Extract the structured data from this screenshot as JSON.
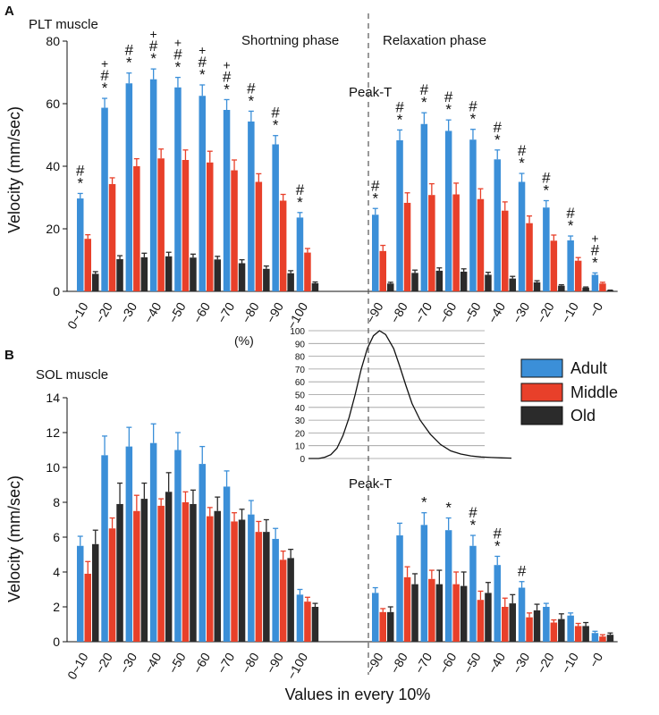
{
  "figure": {
    "xlabel": "Values in every 10%",
    "legend": [
      {
        "name": "Adult",
        "color": "#3b8fd8"
      },
      {
        "name": "Middle",
        "color": "#e8402a"
      },
      {
        "name": "Old",
        "color": "#2b2b2b"
      }
    ]
  },
  "chart_data": [
    {
      "type": "bar",
      "panel": "A",
      "title": "PLT muscle",
      "ylabel": "Velocity (mm/sec)",
      "ylim": [
        0,
        80
      ],
      "yticks": [
        0,
        20,
        40,
        60,
        80
      ],
      "phase_labels": {
        "shortening": "Shortning phase",
        "relaxation": "Relaxation phase",
        "peak": "Peak-T"
      },
      "categories": [
        "0~10",
        "−20",
        "−30",
        "−40",
        "−50",
        "−60",
        "−70",
        "−80",
        "−90",
        "−100",
        "−90",
        "−80",
        "−70",
        "−60",
        "−50",
        "−40",
        "−30",
        "−20",
        "−10",
        "−0"
      ],
      "series": [
        {
          "name": "Adult",
          "color": "#3b8fd8",
          "values": [
            29.7,
            58.7,
            66.5,
            67.8,
            65.2,
            62.5,
            58.0,
            54.3,
            47.0,
            23.6,
            24.5,
            48.3,
            53.5,
            51.3,
            48.5,
            42.2,
            35.0,
            26.8,
            16.3,
            5.3
          ],
          "errors": [
            1.6,
            3.0,
            3.3,
            3.3,
            3.2,
            3.5,
            3.3,
            3.3,
            2.8,
            1.6,
            2.0,
            3.3,
            3.6,
            3.5,
            3.3,
            3.0,
            2.7,
            2.2,
            1.4,
            0.6
          ]
        },
        {
          "name": "Middle",
          "color": "#e8402a",
          "values": [
            16.8,
            34.3,
            40.0,
            42.5,
            42.0,
            41.2,
            38.7,
            35.0,
            29.0,
            12.4,
            12.9,
            28.3,
            30.8,
            31.0,
            29.5,
            25.8,
            21.8,
            16.2,
            9.8,
            2.5
          ],
          "errors": [
            1.3,
            2.0,
            2.4,
            3.0,
            3.2,
            3.6,
            3.3,
            2.6,
            2.0,
            1.3,
            1.8,
            3.2,
            3.6,
            3.6,
            3.3,
            2.8,
            2.3,
            1.8,
            1.0,
            0.4
          ]
        },
        {
          "name": "Old",
          "color": "#2b2b2b",
          "values": [
            5.6,
            10.3,
            10.9,
            11.2,
            10.8,
            10.2,
            9.0,
            7.2,
            5.8,
            2.6,
            2.5,
            5.9,
            6.6,
            6.3,
            5.3,
            4.1,
            2.9,
            1.8,
            1.2,
            0.3
          ],
          "errors": [
            0.7,
            1.1,
            1.3,
            1.3,
            1.1,
            1.0,
            1.1,
            0.9,
            0.8,
            0.4,
            0.4,
            0.9,
            0.9,
            0.9,
            0.8,
            0.7,
            0.5,
            0.3,
            0.2,
            0.1
          ]
        }
      ],
      "annotations": [
        {
          "category_index": 0,
          "marks": [
            "#",
            "*"
          ]
        },
        {
          "category_index": 1,
          "marks": [
            "+",
            "#",
            "*"
          ]
        },
        {
          "category_index": 2,
          "marks": [
            "#",
            "*"
          ]
        },
        {
          "category_index": 3,
          "marks": [
            "+",
            "#",
            "*"
          ]
        },
        {
          "category_index": 4,
          "marks": [
            "+",
            "#",
            "*"
          ]
        },
        {
          "category_index": 5,
          "marks": [
            "+",
            "#",
            "*"
          ]
        },
        {
          "category_index": 6,
          "marks": [
            "+",
            "#",
            "*"
          ]
        },
        {
          "category_index": 7,
          "marks": [
            "#",
            "*"
          ]
        },
        {
          "category_index": 8,
          "marks": [
            "#",
            "*"
          ]
        },
        {
          "category_index": 9,
          "marks": [
            "#",
            "*"
          ]
        },
        {
          "category_index": 10,
          "marks": [
            "#",
            "*"
          ]
        },
        {
          "category_index": 11,
          "marks": [
            "#",
            "*"
          ]
        },
        {
          "category_index": 12,
          "marks": [
            "#",
            "*"
          ]
        },
        {
          "category_index": 13,
          "marks": [
            "#",
            "*"
          ]
        },
        {
          "category_index": 14,
          "marks": [
            "#",
            "*"
          ]
        },
        {
          "category_index": 15,
          "marks": [
            "#",
            "*"
          ]
        },
        {
          "category_index": 16,
          "marks": [
            "#",
            "*"
          ]
        },
        {
          "category_index": 17,
          "marks": [
            "#",
            "*"
          ]
        },
        {
          "category_index": 18,
          "marks": [
            "#",
            "*"
          ]
        },
        {
          "category_index": 19,
          "marks": [
            "+",
            "#",
            "*"
          ]
        }
      ]
    },
    {
      "type": "bar",
      "panel": "B",
      "title": "SOL muscle",
      "ylabel": "Velocity (mm/sec)",
      "ylim": [
        0,
        14
      ],
      "yticks": [
        0,
        2,
        4,
        6,
        8,
        10,
        12,
        14
      ],
      "phase_labels": {
        "peak": "Peak-T"
      },
      "categories": [
        "0~10",
        "−20",
        "−30",
        "−40",
        "−50",
        "−60",
        "−70",
        "−80",
        "−90",
        "−100",
        "−90",
        "−80",
        "−70",
        "−60",
        "−50",
        "−40",
        "−30",
        "−20",
        "−10",
        "−0"
      ],
      "series": [
        {
          "name": "Adult",
          "color": "#3b8fd8",
          "values": [
            5.5,
            10.7,
            11.2,
            11.4,
            11.0,
            10.2,
            8.9,
            7.3,
            5.9,
            2.7,
            2.8,
            6.1,
            6.7,
            6.4,
            5.5,
            4.4,
            3.1,
            2.0,
            1.5,
            0.5
          ],
          "errors": [
            0.55,
            1.1,
            1.1,
            1.1,
            1.0,
            1.0,
            0.9,
            0.8,
            0.6,
            0.3,
            0.3,
            0.7,
            0.7,
            0.7,
            0.6,
            0.5,
            0.35,
            0.2,
            0.15,
            0.1
          ]
        },
        {
          "name": "Middle",
          "color": "#e8402a",
          "values": [
            3.9,
            6.5,
            7.5,
            7.8,
            8.0,
            7.2,
            6.9,
            6.3,
            4.7,
            2.3,
            1.7,
            3.7,
            3.6,
            3.3,
            2.4,
            2.0,
            1.4,
            1.1,
            0.9,
            0.3
          ],
          "errors": [
            0.7,
            0.6,
            0.9,
            0.4,
            0.6,
            0.5,
            0.5,
            0.6,
            0.5,
            0.25,
            0.2,
            0.6,
            0.5,
            0.7,
            0.5,
            0.5,
            0.25,
            0.15,
            0.15,
            0.1
          ]
        },
        {
          "name": "Old",
          "color": "#2b2b2b",
          "values": [
            5.6,
            7.9,
            8.2,
            8.6,
            7.9,
            7.5,
            7.0,
            6.3,
            4.8,
            2.0,
            1.7,
            3.3,
            3.3,
            3.2,
            2.8,
            2.2,
            1.8,
            1.3,
            0.9,
            0.4
          ],
          "errors": [
            0.8,
            1.2,
            0.9,
            1.1,
            0.8,
            0.8,
            0.6,
            0.7,
            0.5,
            0.2,
            0.3,
            0.6,
            0.8,
            0.8,
            0.6,
            0.5,
            0.35,
            0.3,
            0.2,
            0.1
          ]
        }
      ],
      "annotations": [
        {
          "category_index": 12,
          "marks": [
            "*"
          ]
        },
        {
          "category_index": 13,
          "marks": [
            "*"
          ]
        },
        {
          "category_index": 14,
          "marks": [
            "#",
            "*"
          ]
        },
        {
          "category_index": 15,
          "marks": [
            "#",
            "*"
          ]
        },
        {
          "category_index": 16,
          "marks": [
            "#"
          ]
        }
      ]
    },
    {
      "type": "line",
      "panel": "inset",
      "ylabel": "(%)",
      "ylim": [
        0,
        100
      ],
      "yticks": [
        0,
        10,
        20,
        30,
        40,
        50,
        60,
        70,
        80,
        90,
        100
      ],
      "x": [
        0,
        0.05,
        0.08,
        0.11,
        0.14,
        0.17,
        0.2,
        0.23,
        0.26,
        0.29,
        0.32,
        0.35,
        0.38,
        0.42,
        0.45,
        0.48,
        0.51,
        0.55,
        0.6,
        0.65,
        0.7,
        0.75,
        0.8,
        0.85,
        0.9,
        0.95,
        1.0
      ],
      "values": [
        0,
        0,
        1,
        3,
        8,
        18,
        32,
        50,
        70,
        86,
        96,
        100,
        97,
        86,
        72,
        57,
        43,
        30,
        19,
        11,
        6,
        3.5,
        2,
        1.2,
        0.8,
        0.5,
        0.3
      ]
    }
  ]
}
